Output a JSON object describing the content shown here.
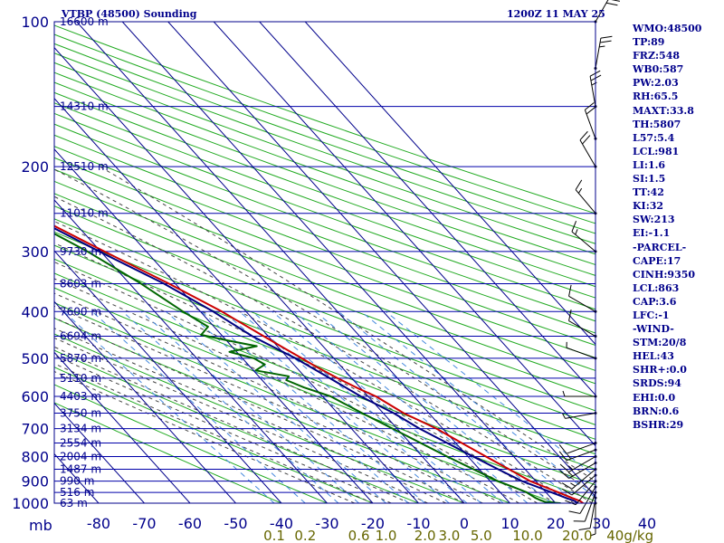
{
  "header": {
    "station_title": "VTBP (48500) Sounding",
    "valid_time": "1200Z 11 MAY 25"
  },
  "indices": [
    "WMO:48500",
    "TP:89",
    "FRZ:548",
    "WB0:587",
    "PW:2.03",
    "RH:65.5",
    "MAXT:33.8",
    "TH:5807",
    "L57:5.4",
    "LCL:981",
    "LI:1.6",
    "SI:1.5",
    "TT:42",
    "KI:32",
    "SW:213",
    "EI:-1.1",
    "-PARCEL-",
    "CAPE:17",
    "CINH:9350",
    "LCL:863",
    "CAP:3.6",
    "LFC:-1",
    "-WIND-",
    "STM:20/8",
    "HEL:43",
    "SHR+:0.0",
    "SRDS:94",
    "EHI:0.0",
    "BRN:0.6",
    "BSHR:29"
  ],
  "colors": {
    "frame": "#00008b",
    "isobar": "#0000aa",
    "isotherm": "#00008b",
    "dry_adiabat": "#22aa22",
    "moist_adiabat": "#444444",
    "mixing_ratio": "#4488dd",
    "temperature": "#cc0000",
    "dewpoint": "#006600",
    "parcel": "#000080",
    "wind": "#000000",
    "mixing_ratio_label": "#666600"
  },
  "chart_data": {
    "type": "skew-t log-p sounding",
    "title": "VTBP (48500) Sounding",
    "pressure_axis": {
      "unit": "mb",
      "ticks": [
        100,
        200,
        300,
        400,
        500,
        600,
        700,
        800,
        900,
        1000
      ],
      "range": [
        100,
        1000
      ],
      "scale": "log"
    },
    "temperature_axis": {
      "ticks": [
        -80,
        -70,
        -60,
        -50,
        -40,
        -30,
        -20,
        -10,
        0,
        10,
        20,
        30,
        40
      ],
      "range": [
        -80,
        40
      ]
    },
    "height_labels": [
      {
        "p": 100,
        "label": "16600 m"
      },
      {
        "p": 150,
        "label": "14310 m"
      },
      {
        "p": 200,
        "label": "12510 m"
      },
      {
        "p": 250,
        "label": "11010 m"
      },
      {
        "p": 300,
        "label": "9730 m"
      },
      {
        "p": 350,
        "label": "8603 m"
      },
      {
        "p": 400,
        "label": "7600 m"
      },
      {
        "p": 450,
        "label": "6694 m"
      },
      {
        "p": 500,
        "label": "5870 m"
      },
      {
        "p": 550,
        "label": "5110 m"
      },
      {
        "p": 600,
        "label": "4403 m"
      },
      {
        "p": 650,
        "label": "3750 m"
      },
      {
        "p": 700,
        "label": "3134 m"
      },
      {
        "p": 750,
        "label": "2554 m"
      },
      {
        "p": 800,
        "label": "2004 m"
      },
      {
        "p": 850,
        "label": "1487 m"
      },
      {
        "p": 900,
        "label": "990 m"
      },
      {
        "p": 950,
        "label": "516 m"
      },
      {
        "p": 1000,
        "label": "63 m"
      }
    ],
    "mixing_ratio_labels": [
      {
        "w": 0.1,
        "label": "0.1"
      },
      {
        "w": 0.2,
        "label": "0.2"
      },
      {
        "w": 0.6,
        "label": "0.6"
      },
      {
        "w": 1.0,
        "label": "1.0"
      },
      {
        "w": 2.0,
        "label": "2.0"
      },
      {
        "w": 3.0,
        "label": "3.0"
      },
      {
        "w": 5.0,
        "label": "5.0"
      },
      {
        "w": 10.0,
        "label": "10.0"
      },
      {
        "w": 20.0,
        "label": "20.0"
      },
      {
        "w": 40.0,
        "label": "40g/kg"
      }
    ],
    "series": [
      {
        "name": "temperature",
        "points": [
          [
            1005,
            25.5
          ],
          [
            1000,
            26.0
          ],
          [
            990,
            25.8
          ],
          [
            975,
            24.6
          ],
          [
            950,
            22.7
          ],
          [
            925,
            20.8
          ],
          [
            900,
            18.8
          ],
          [
            850,
            16.5
          ],
          [
            800,
            13.9
          ],
          [
            750,
            11.3
          ],
          [
            700,
            8.6
          ],
          [
            650,
            4.5
          ],
          [
            600,
            1.7
          ],
          [
            580,
            -0.4
          ],
          [
            550,
            -3.1
          ],
          [
            520,
            -5.6
          ],
          [
            500,
            -7.0
          ],
          [
            480,
            -8.6
          ],
          [
            450,
            -11.0
          ],
          [
            400,
            -15.3
          ],
          [
            350,
            -21.4
          ],
          [
            300,
            -29.2
          ],
          [
            250,
            -38.0
          ],
          [
            200,
            -46.8
          ],
          [
            175,
            -53.5
          ],
          [
            150,
            -62.4
          ],
          [
            125,
            -70.0
          ],
          [
            100,
            -79.5
          ]
        ]
      },
      {
        "name": "dewpoint",
        "points": [
          [
            1005,
            20.5
          ],
          [
            1000,
            21.0
          ],
          [
            995,
            18.0
          ],
          [
            985,
            17.2
          ],
          [
            975,
            16.6
          ],
          [
            950,
            15.8
          ],
          [
            925,
            13.9
          ],
          [
            900,
            11.7
          ],
          [
            850,
            8.7
          ],
          [
            800,
            5.4
          ],
          [
            750,
            2.3
          ],
          [
            700,
            -1.0
          ],
          [
            650,
            -4.6
          ],
          [
            600,
            -8.2
          ],
          [
            575,
            -12.3
          ],
          [
            555,
            -14.7
          ],
          [
            545,
            -13.4
          ],
          [
            530,
            -19.5
          ],
          [
            515,
            -16.3
          ],
          [
            500,
            -17.5
          ],
          [
            485,
            -21.6
          ],
          [
            472,
            -14.5
          ],
          [
            460,
            -19.4
          ],
          [
            447,
            -24.4
          ],
          [
            430,
            -21.3
          ],
          [
            400,
            -23.8
          ],
          [
            350,
            -27.5
          ],
          [
            300,
            -32.9
          ],
          [
            250,
            -41.0
          ],
          [
            200,
            -50.6
          ],
          [
            175,
            -56.4
          ],
          [
            150,
            -64.4
          ],
          [
            145,
            -69.5
          ],
          [
            130,
            -70.8
          ],
          [
            118,
            -76.0
          ],
          [
            110,
            -78.0
          ]
        ]
      },
      {
        "name": "parcel",
        "points": [
          [
            1000,
            24.9
          ],
          [
            990,
            24.6
          ],
          [
            975,
            23.3
          ],
          [
            950,
            21.2
          ],
          [
            925,
            19.2
          ],
          [
            900,
            17.0
          ],
          [
            850,
            14.1
          ],
          [
            800,
            11.1
          ],
          [
            750,
            8.1
          ],
          [
            700,
            4.9
          ],
          [
            650,
            2.3
          ],
          [
            600,
            -1.6
          ],
          [
            550,
            -4.8
          ],
          [
            500,
            -8.4
          ],
          [
            450,
            -13.5
          ],
          [
            400,
            -17.2
          ],
          [
            350,
            -22.5
          ],
          [
            300,
            -30.3
          ],
          [
            250,
            -39.0
          ],
          [
            200,
            -48.3
          ],
          [
            175,
            -55.8
          ],
          [
            150,
            -65.7
          ],
          [
            125,
            -76.5
          ],
          [
            118,
            -80.0
          ]
        ]
      }
    ],
    "wind_barbs": [
      {
        "p": 1000,
        "dir": 180,
        "kt": 5
      },
      {
        "p": 975,
        "dir": 190,
        "kt": 10
      },
      {
        "p": 950,
        "dir": 200,
        "kt": 10
      },
      {
        "p": 925,
        "dir": 210,
        "kt": 10
      },
      {
        "p": 900,
        "dir": 220,
        "kt": 10
      },
      {
        "p": 875,
        "dir": 230,
        "kt": 10
      },
      {
        "p": 850,
        "dir": 230,
        "kt": 15
      },
      {
        "p": 825,
        "dir": 240,
        "kt": 15
      },
      {
        "p": 800,
        "dir": 240,
        "kt": 15
      },
      {
        "p": 775,
        "dir": 250,
        "kt": 15
      },
      {
        "p": 750,
        "dir": 250,
        "kt": 10
      },
      {
        "p": 650,
        "dir": 260,
        "kt": 5
      },
      {
        "p": 600,
        "dir": 270,
        "kt": 5
      },
      {
        "p": 500,
        "dir": 290,
        "kt": 5
      },
      {
        "p": 450,
        "dir": 300,
        "kt": 10
      },
      {
        "p": 400,
        "dir": 300,
        "kt": 10
      },
      {
        "p": 300,
        "dir": 310,
        "kt": 15
      },
      {
        "p": 250,
        "dir": 320,
        "kt": 15
      },
      {
        "p": 200,
        "dir": 330,
        "kt": 20
      },
      {
        "p": 175,
        "dir": 340,
        "kt": 20
      },
      {
        "p": 150,
        "dir": 350,
        "kt": 25
      },
      {
        "p": 125,
        "dir": 10,
        "kt": 25
      },
      {
        "p": 100,
        "dir": 30,
        "kt": 30
      }
    ],
    "labels": {
      "pressure_unit": "mb"
    }
  }
}
